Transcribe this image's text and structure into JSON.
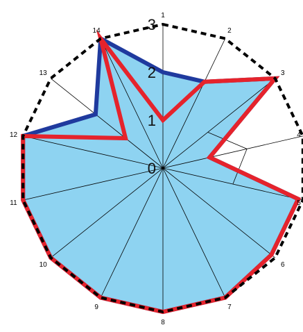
{
  "chart_data": {
    "type": "radar",
    "categories": [
      "1",
      "2",
      "3",
      "4",
      "5",
      "6",
      "7",
      "8",
      "9",
      "10",
      "11",
      "12",
      "13",
      "14"
    ],
    "r_ticks": [
      "0",
      "1",
      "2",
      "3"
    ],
    "r_range": [
      0,
      3
    ],
    "series": [
      {
        "values": [
          2.0,
          2.0,
          3.0,
          1.0,
          2.9,
          2.9,
          3.0,
          3.0,
          3.0,
          3.0,
          3.0,
          3.0,
          1.8,
          3.0
        ],
        "color": "#1f3a9e"
      },
      {
        "values": [
          1.0,
          2.0,
          3.0,
          1.0,
          2.9,
          2.9,
          3.0,
          3.0,
          3.0,
          3.0,
          3.0,
          3.0,
          1.0,
          3.0
        ],
        "color": "#e5232c"
      }
    ],
    "fill_color": "#8ed3f1",
    "outer_ring_style": "dashed",
    "grid": "spokes"
  }
}
